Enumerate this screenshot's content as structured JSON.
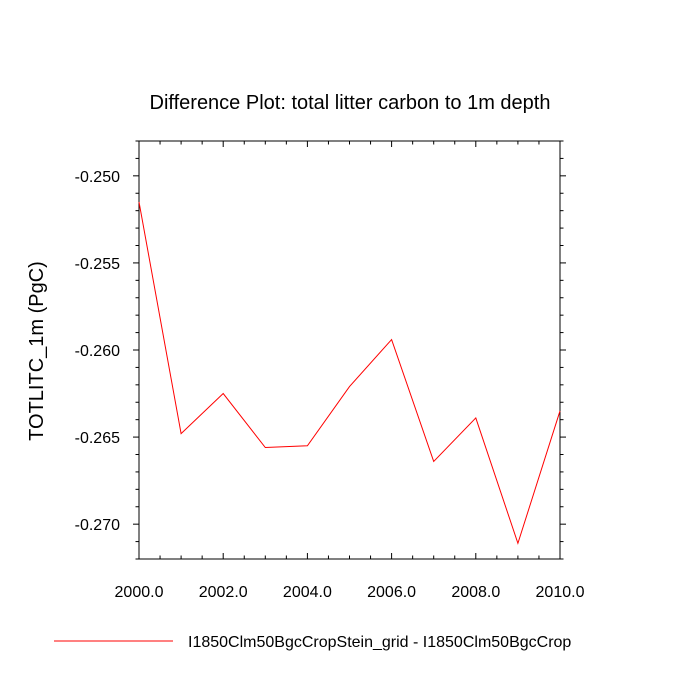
{
  "chart_data": {
    "type": "line",
    "title": "Difference Plot: total litter carbon to 1m depth",
    "xlabel": "",
    "ylabel": "TOTLITC_1m  (PgC)",
    "xlim": [
      2000.0,
      2010.0
    ],
    "ylim": [
      -0.272,
      -0.248
    ],
    "x_ticks": [
      2000.0,
      2002.0,
      2004.0,
      2006.0,
      2008.0,
      2010.0
    ],
    "x_tick_labels": [
      "2000.0",
      "2002.0",
      "2004.0",
      "2006.0",
      "2008.0",
      "2010.0"
    ],
    "y_ticks": [
      -0.25,
      -0.255,
      -0.26,
      -0.265,
      -0.27
    ],
    "y_tick_labels": [
      "-0.250",
      "-0.255",
      "-0.260",
      "-0.265",
      "-0.270"
    ],
    "grid": false,
    "legend_position": "bottom",
    "series": [
      {
        "name": "I1850Clm50BgcCropStein_grid - I1850Clm50BgcCrop",
        "color": "#ff0000",
        "x": [
          2000,
          2001,
          2002,
          2003,
          2004,
          2005,
          2006,
          2007,
          2008,
          2009,
          2010
        ],
        "y": [
          -0.2515,
          -0.2648,
          -0.2625,
          -0.2656,
          -0.2655,
          -0.2621,
          -0.2594,
          -0.2664,
          -0.2639,
          -0.2711,
          -0.2635
        ]
      }
    ]
  }
}
